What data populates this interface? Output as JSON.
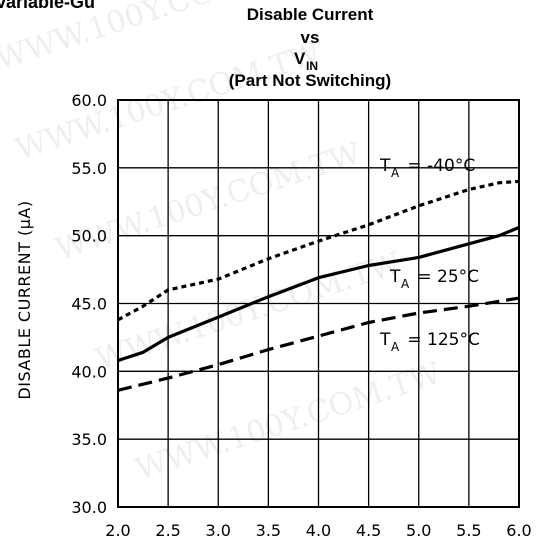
{
  "header_fragment": "variable-Gu",
  "watermark": "WWW.100Y.COM.TW",
  "chart_data": {
    "type": "line",
    "title_line1": "Disable Current",
    "title_line2": "vs",
    "title_line3_main": "V",
    "title_line3_sub": "IN",
    "title_line4": "(Part Not Switching)",
    "xlabel": "",
    "ylabel": "DISABLE CURRENT (μA)",
    "xlim": [
      2.0,
      6.0
    ],
    "ylim": [
      30.0,
      60.0
    ],
    "x_ticks": [
      "2.0",
      "2.5",
      "3.0",
      "3.5",
      "4.0",
      "4.5",
      "5.0",
      "5.5",
      "6.0"
    ],
    "y_ticks": [
      "30.0",
      "35.0",
      "40.0",
      "45.0",
      "50.0",
      "55.0",
      "60.0"
    ],
    "grid": true,
    "series": [
      {
        "label_main": "T",
        "label_sub": "A",
        "label_value": " = -40°C",
        "style": "dotted",
        "x": [
          2.0,
          2.25,
          2.5,
          3.0,
          3.5,
          4.0,
          4.5,
          5.0,
          5.5,
          5.8,
          6.0
        ],
        "y": [
          43.8,
          44.8,
          46.0,
          46.8,
          48.3,
          49.6,
          50.8,
          52.2,
          53.4,
          53.9,
          54.0
        ]
      },
      {
        "label_main": "T",
        "label_sub": "A",
        "label_value": " = 25°C",
        "style": "solid",
        "x": [
          2.0,
          2.25,
          2.5,
          3.0,
          3.5,
          4.0,
          4.5,
          5.0,
          5.5,
          5.8,
          6.0
        ],
        "y": [
          40.8,
          41.4,
          42.5,
          44.0,
          45.5,
          46.9,
          47.8,
          48.4,
          49.4,
          50.0,
          50.6
        ]
      },
      {
        "label_main": "T",
        "label_sub": "A",
        "label_value": " = 125°C",
        "style": "dashed",
        "x": [
          2.0,
          2.5,
          3.0,
          3.5,
          4.0,
          4.5,
          5.0,
          5.5,
          6.0
        ],
        "y": [
          38.6,
          39.5,
          40.5,
          41.6,
          42.6,
          43.6,
          44.3,
          44.8,
          45.4
        ]
      }
    ]
  }
}
